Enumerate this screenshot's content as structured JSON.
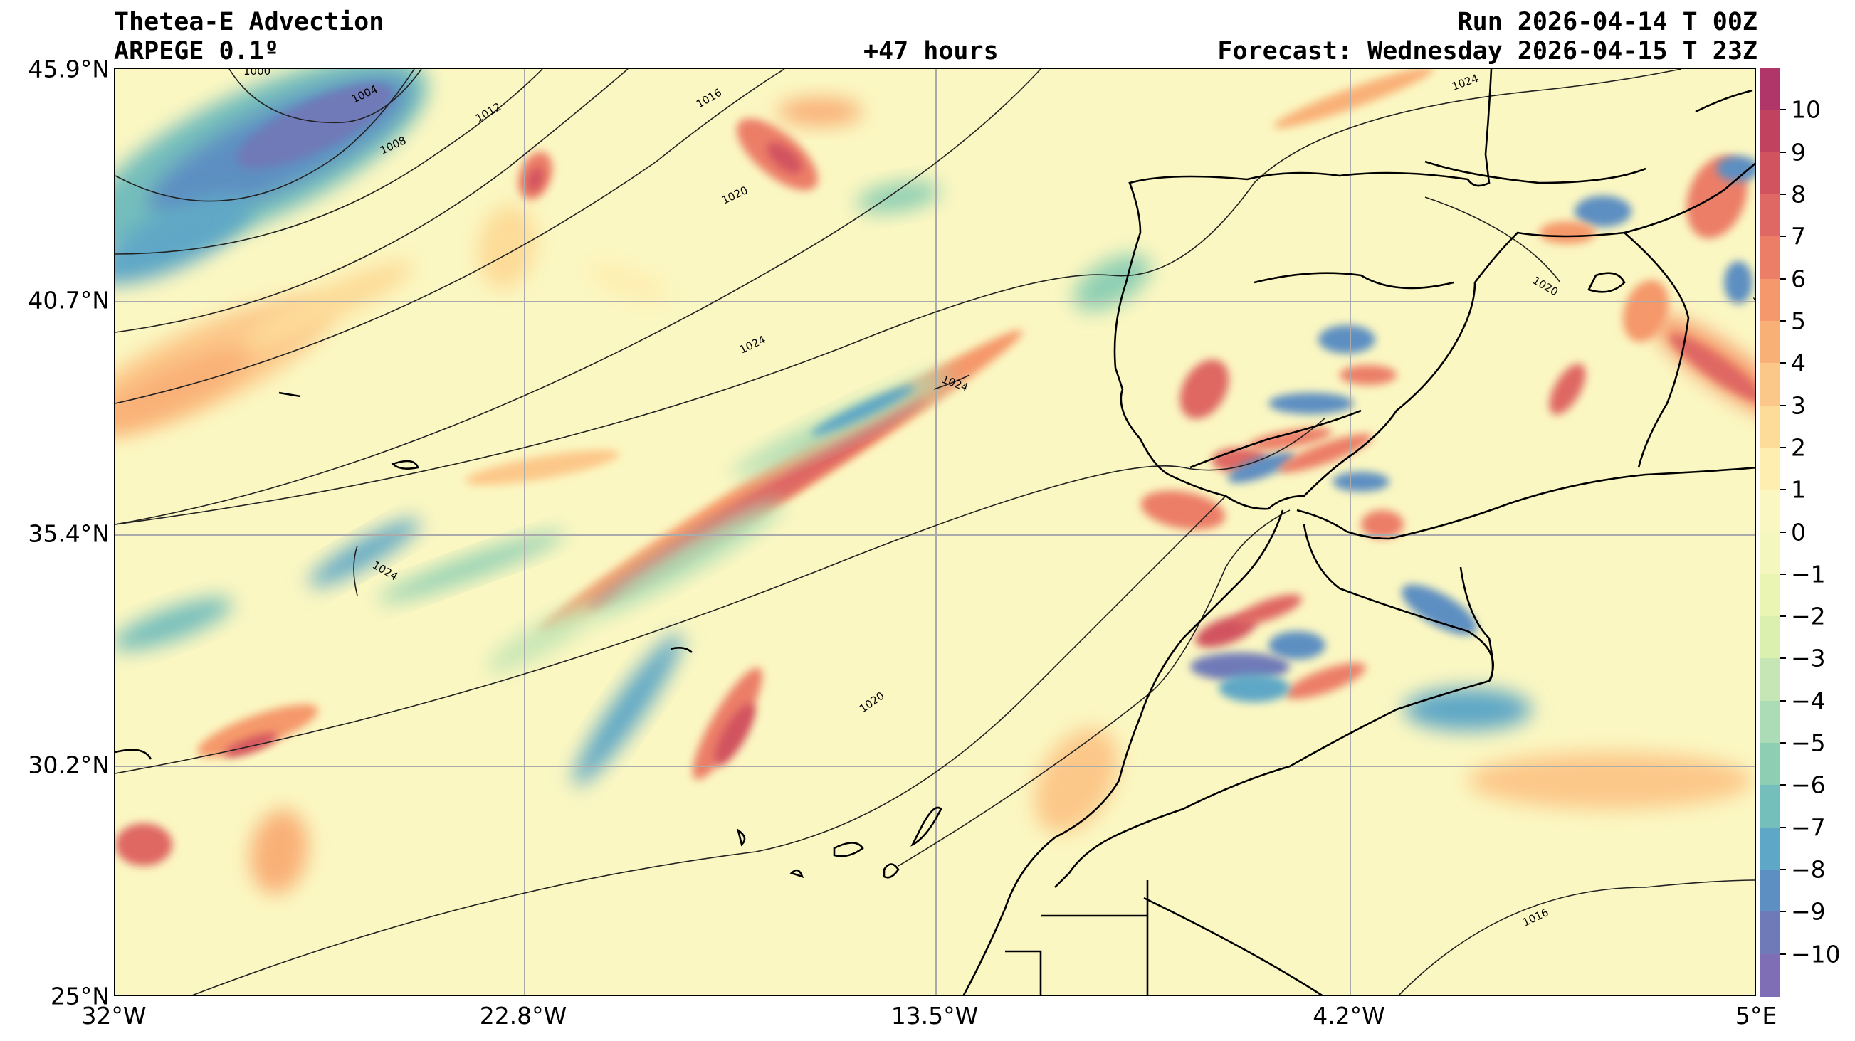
{
  "header": {
    "title": "Thetea-E Advection",
    "model": "ARPEGE 0.1º",
    "lead_time": "+47 hours",
    "run": "Run 2026-04-14 T 00Z",
    "forecast": "Forecast: Wednesday 2026-04-15 T 23Z"
  },
  "axes": {
    "lat_labels": [
      "45.9°N",
      "40.7°N",
      "35.4°N",
      "30.2°N",
      "25°N"
    ],
    "lon_labels": [
      "32°W",
      "22.8°W",
      "13.5°W",
      "4.2°W",
      "5°E"
    ]
  },
  "colorbar": {
    "ticks": [
      "10",
      "9",
      "8",
      "7",
      "6",
      "5",
      "4",
      "3",
      "2",
      "1",
      "0",
      "−1",
      "−2",
      "−3",
      "−4",
      "−5",
      "−6",
      "−7",
      "−8",
      "−9",
      "−10"
    ],
    "colors": [
      "#b0366a",
      "#c0425f",
      "#d1535f",
      "#df6864",
      "#ec7e67",
      "#f5986b",
      "#f9b077",
      "#fcc889",
      "#fddb98",
      "#feeeb0",
      "#fbf7c2",
      "#f4f8bf",
      "#eaf4b3",
      "#dbefae",
      "#c6e6b5",
      "#acdcb5",
      "#8ecfb3",
      "#74bebc",
      "#5fa7c6",
      "#5d8fc2",
      "#6f7ab8",
      "#7f6eb5"
    ]
  },
  "isobars": {
    "labels": [
      "1000",
      "1004",
      "1008",
      "1012",
      "1016",
      "1020",
      "1024",
      "1024",
      "1024",
      "1020",
      "1016",
      "1024",
      "1020",
      "1024"
    ]
  }
}
